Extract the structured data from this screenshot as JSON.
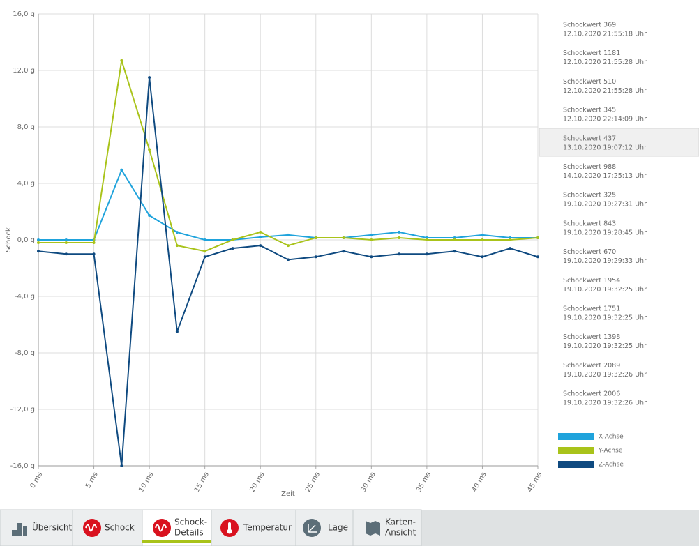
{
  "chart_data": {
    "type": "line",
    "x_label": "Zeit",
    "y_label": "Schock",
    "x": [
      0,
      2.5,
      5,
      7.5,
      10,
      12.5,
      15,
      17.5,
      20,
      22.5,
      25,
      27.5,
      30,
      32.5,
      35,
      37.5,
      40,
      42.5,
      45
    ],
    "series": [
      {
        "name": "X-Achse",
        "color": "#1fa3dc",
        "values": [
          0,
          0,
          0,
          4.95,
          1.73,
          0.54,
          0,
          0,
          0.2,
          0.35,
          0.15,
          0.15,
          0.35,
          0.55,
          0.15,
          0.15,
          0.35,
          0.15,
          0.15
        ]
      },
      {
        "name": "Y-Achse",
        "color": "#a9c31a",
        "values": [
          -0.2,
          -0.2,
          -0.2,
          12.7,
          6.4,
          -0.4,
          -0.8,
          0,
          0.55,
          -0.4,
          0.15,
          0.15,
          0,
          0.15,
          0,
          0,
          0,
          0,
          0.15
        ]
      },
      {
        "name": "Z-Achse",
        "color": "#0f4a80",
        "values": [
          -0.8,
          -1.0,
          -1.0,
          -16,
          11.5,
          -6.5,
          -1.2,
          -0.6,
          -0.4,
          -1.4,
          -1.2,
          -0.8,
          -1.2,
          -1.0,
          -1.0,
          -0.8,
          -1.2,
          -0.6,
          -1.2
        ]
      }
    ],
    "xlim": [
      0,
      45
    ],
    "xticks": [
      {
        "value": 0,
        "label": "0 ms"
      },
      {
        "value": 5,
        "label": "5 ms"
      },
      {
        "value": 10,
        "label": "10 ms"
      },
      {
        "value": 15,
        "label": "15 ms"
      },
      {
        "value": 20,
        "label": "20 ms"
      },
      {
        "value": 25,
        "label": "25 ms"
      },
      {
        "value": 30,
        "label": "30 ms"
      },
      {
        "value": 35,
        "label": "35 ms"
      },
      {
        "value": 40,
        "label": "40 ms"
      },
      {
        "value": 45,
        "label": "45 ms"
      }
    ],
    "ylim": [
      -16,
      16
    ],
    "yticks": [
      {
        "value": -16,
        "label": "-16,0 g"
      },
      {
        "value": -12,
        "label": "-12,0 g"
      },
      {
        "value": -8,
        "label": "-8,0 g"
      },
      {
        "value": -4,
        "label": "-4,0 g"
      },
      {
        "value": 0,
        "label": "0,0 g"
      },
      {
        "value": 4,
        "label": "4,0 g"
      },
      {
        "value": 8,
        "label": "8,0 g"
      },
      {
        "value": 12,
        "label": "12,0 g"
      },
      {
        "value": 16,
        "label": "16,0 g"
      }
    ],
    "grid": true,
    "legend": "lower right"
  },
  "events": [
    {
      "title": "Schockwert 369",
      "time": "12.10.2020 21:55:18 Uhr"
    },
    {
      "title": "Schockwert 1181",
      "time": "12.10.2020 21:55:28 Uhr"
    },
    {
      "title": "Schockwert 510",
      "time": "12.10.2020 21:55:28 Uhr"
    },
    {
      "title": "Schockwert 345",
      "time": "12.10.2020 22:14:09 Uhr"
    },
    {
      "title": "Schockwert 437",
      "time": "13.10.2020 19:07:12 Uhr"
    },
    {
      "title": "Schockwert 988",
      "time": "14.10.2020 17:25:13 Uhr"
    },
    {
      "title": "Schockwert 325",
      "time": "19.10.2020 19:27:31 Uhr"
    },
    {
      "title": "Schockwert 843",
      "time": "19.10.2020 19:28:45 Uhr"
    },
    {
      "title": "Schockwert 670",
      "time": "19.10.2020 19:29:33 Uhr"
    },
    {
      "title": "Schockwert 1954",
      "time": "19.10.2020 19:32:25 Uhr"
    },
    {
      "title": "Schockwert 1751",
      "time": "19.10.2020 19:32:25 Uhr"
    },
    {
      "title": "Schockwert 1398",
      "time": "19.10.2020 19:32:25 Uhr"
    },
    {
      "title": "Schockwert 2089",
      "time": "19.10.2020 19:32:26 Uhr"
    },
    {
      "title": "Schockwert 2006",
      "time": "19.10.2020 19:32:26 Uhr"
    }
  ],
  "tabs": [
    [
      "Übersicht"
    ],
    [
      "Schock"
    ],
    [
      "Schock-",
      "Details"
    ],
    [
      "Temperatur"
    ],
    [
      "Lage"
    ],
    [
      "Karten-",
      "Ansicht"
    ]
  ]
}
